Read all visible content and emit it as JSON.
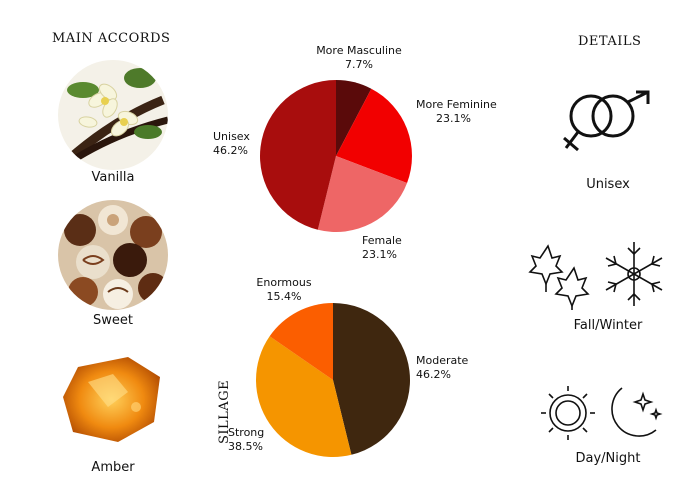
{
  "main_accords": {
    "title": "MAIN ACCORDS",
    "items": [
      {
        "label": "Vanilla",
        "icon": "vanilla-flower-photo"
      },
      {
        "label": "Sweet",
        "icon": "chocolate-candies-photo"
      },
      {
        "label": "Amber",
        "icon": "amber-stone-photo"
      }
    ]
  },
  "details": {
    "title": "DETAILS",
    "items": [
      {
        "label": "Unisex",
        "icon": "unisex-symbol-icon"
      },
      {
        "label": "Fall/Winter",
        "icon": "leaves-snowflake-icon"
      },
      {
        "label": "Day/Night",
        "icon": "sun-moon-icon"
      }
    ]
  },
  "sillage_label": "SILLAGE",
  "chart_data": [
    {
      "type": "pie",
      "slices": [
        {
          "label": "More Masculine",
          "value": 7.7,
          "display": "7.7%",
          "color": "#5a0a0a"
        },
        {
          "label": "More Feminine",
          "value": 23.1,
          "display": "23.1%",
          "color": "#f20000"
        },
        {
          "label": "Female",
          "value": 23.1,
          "display": "23.1%",
          "color": "#ee6666"
        },
        {
          "label": "Unisex",
          "value": 46.2,
          "display": "46.2%",
          "color": "#a80d0d"
        }
      ]
    },
    {
      "type": "pie",
      "slices": [
        {
          "label": "Moderate",
          "value": 46.2,
          "display": "46.2%",
          "color": "#3f270f"
        },
        {
          "label": "Strong",
          "value": 38.5,
          "display": "38.5%",
          "color": "#f59500"
        },
        {
          "label": "Enormous",
          "value": 15.4,
          "display": "15.4%",
          "color": "#fb5e00"
        }
      ]
    }
  ]
}
